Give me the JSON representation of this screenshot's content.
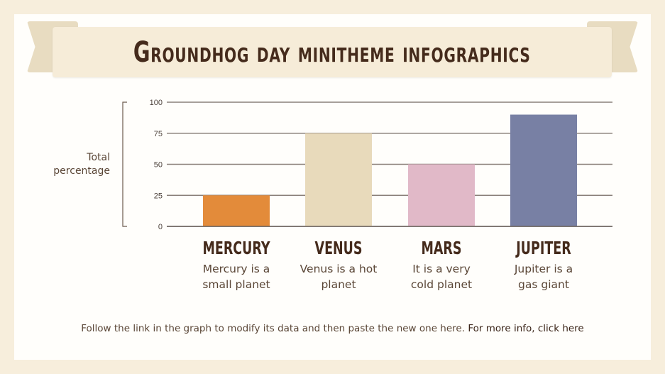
{
  "title": "Groundhog day minitheme infographics",
  "chart_data": {
    "type": "bar",
    "categories": [
      "MERCURY",
      "VENUS",
      "MARS",
      "JUPITER"
    ],
    "values": [
      25,
      75,
      50,
      90
    ],
    "colors": [
      "#e38b3a",
      "#e8dabb",
      "#e1b9c8",
      "#7880a4"
    ],
    "ylabel": "Total percentage",
    "ylim": [
      0,
      100
    ],
    "yticks": [
      0,
      25,
      50,
      75,
      100
    ],
    "grid": true
  },
  "descriptions": [
    "Mercury is a small planet",
    "Venus is a hot planet",
    "It is a very cold planet",
    "Jupiter is a gas giant"
  ],
  "footer": {
    "text": "Follow the link in the graph to modify its data and then paste the new one here.",
    "link": "For more info, click here"
  }
}
